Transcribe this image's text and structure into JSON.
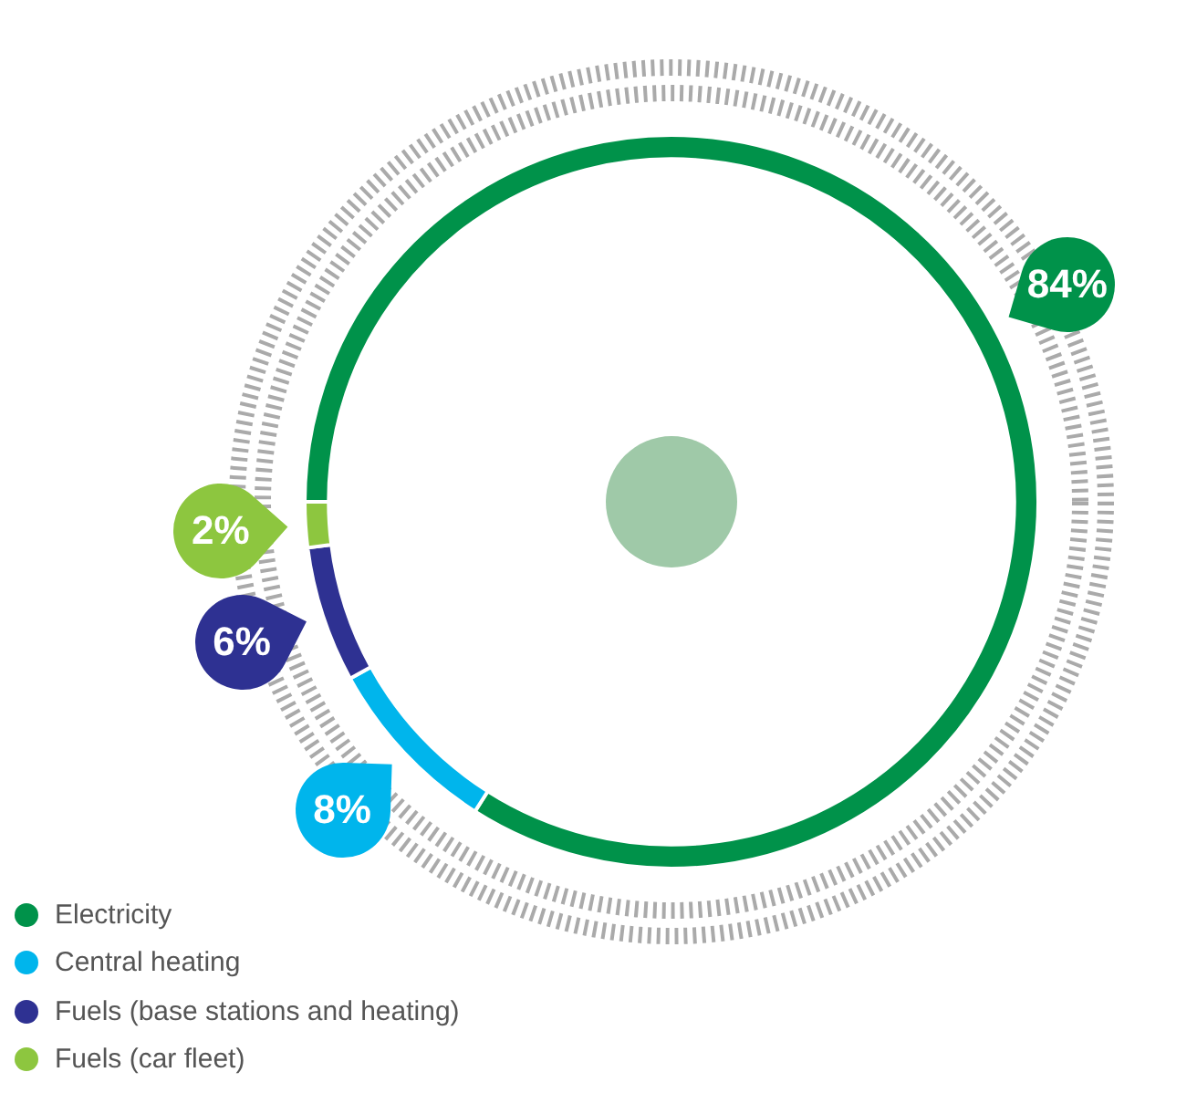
{
  "chart_data": {
    "type": "donut",
    "categories": [
      "Electricity",
      "Central heating",
      "Fuels (base stations and heating)",
      "Fuels (car fleet)"
    ],
    "values": [
      84,
      8,
      6,
      2
    ],
    "colors": [
      "#00924a",
      "#00b5ec",
      "#2e3192",
      "#8dc63f"
    ],
    "value_labels": [
      "84%",
      "8%",
      "6%",
      "2%"
    ],
    "legend": "bottom left"
  }
}
